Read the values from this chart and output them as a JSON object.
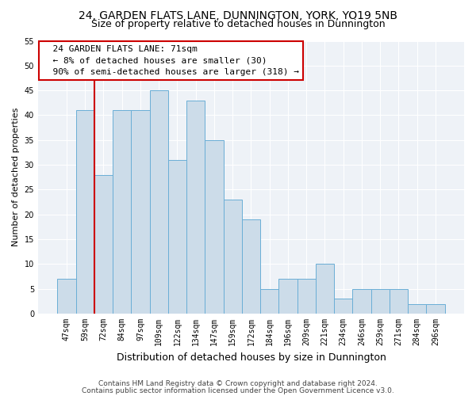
{
  "title": "24, GARDEN FLATS LANE, DUNNINGTON, YORK, YO19 5NB",
  "subtitle": "Size of property relative to detached houses in Dunnington",
  "xlabel": "Distribution of detached houses by size in Dunnington",
  "ylabel": "Number of detached properties",
  "bar_labels": [
    "47sqm",
    "59sqm",
    "72sqm",
    "84sqm",
    "97sqm",
    "109sqm",
    "122sqm",
    "134sqm",
    "147sqm",
    "159sqm",
    "172sqm",
    "184sqm",
    "196sqm",
    "209sqm",
    "221sqm",
    "234sqm",
    "246sqm",
    "259sqm",
    "271sqm",
    "284sqm",
    "296sqm"
  ],
  "bar_values": [
    7,
    41,
    28,
    41,
    41,
    45,
    31,
    43,
    35,
    23,
    19,
    5,
    7,
    7,
    10,
    3,
    5,
    5,
    5,
    2,
    2
  ],
  "bar_color": "#ccdce9",
  "bar_edge_color": "#6aaed6",
  "vline_color": "#cc0000",
  "annotation_text": "  24 GARDEN FLATS LANE: 71sqm\n  ← 8% of detached houses are smaller (30)\n  90% of semi-detached houses are larger (318) →",
  "annotation_box_color": "white",
  "annotation_box_edge": "#cc0000",
  "ylim": [
    0,
    55
  ],
  "yticks": [
    0,
    5,
    10,
    15,
    20,
    25,
    30,
    35,
    40,
    45,
    50,
    55
  ],
  "footer1": "Contains HM Land Registry data © Crown copyright and database right 2024.",
  "footer2": "Contains public sector information licensed under the Open Government Licence v3.0.",
  "title_fontsize": 10,
  "subtitle_fontsize": 9,
  "xlabel_fontsize": 9,
  "ylabel_fontsize": 8,
  "tick_fontsize": 7,
  "annotation_fontsize": 8,
  "footer_fontsize": 6.5,
  "background_color": "#eef2f7"
}
